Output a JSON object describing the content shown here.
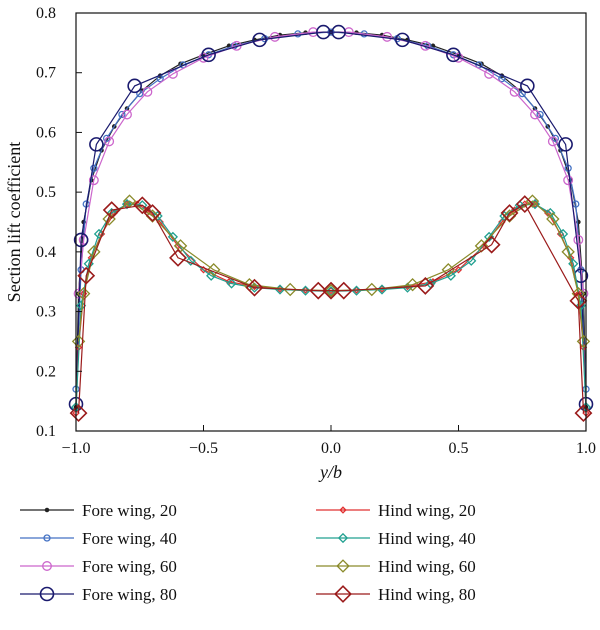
{
  "chart_data": {
    "type": "line",
    "title": "",
    "xlabel": "y/b",
    "ylabel": "Section lift coefficient",
    "xlim": [
      -1.0,
      1.0
    ],
    "ylim": [
      0.1,
      0.8
    ],
    "xticks": [
      "−1.0",
      "−0.5",
      "0.0",
      "0.5",
      "1.0"
    ],
    "xtick_values": [
      -1.0,
      -0.5,
      0.0,
      0.5,
      1.0
    ],
    "yticks": [
      "0.1",
      "0.2",
      "0.3",
      "0.4",
      "0.5",
      "0.6",
      "0.7",
      "0.8"
    ],
    "ytick_values": [
      0.1,
      0.2,
      0.3,
      0.4,
      0.5,
      0.6,
      0.7,
      0.8
    ],
    "grid": false,
    "legend_position": "bottom",
    "series": [
      {
        "name": "Fore wing, 20",
        "color": "#222222",
        "marker": "dot",
        "x": [
          -1.0,
          -0.99,
          -0.97,
          -0.94,
          -0.9,
          -0.85,
          -0.8,
          -0.74,
          -0.67,
          -0.59,
          -0.5,
          -0.4,
          -0.3,
          -0.2,
          -0.1,
          0.0,
          0.1,
          0.2,
          0.3,
          0.4,
          0.5,
          0.59,
          0.67,
          0.74,
          0.8,
          0.85,
          0.9,
          0.94,
          0.97,
          0.99,
          1.0
        ],
        "y": [
          0.14,
          0.33,
          0.45,
          0.52,
          0.57,
          0.61,
          0.64,
          0.67,
          0.695,
          0.715,
          0.73,
          0.745,
          0.755,
          0.763,
          0.767,
          0.768,
          0.767,
          0.763,
          0.755,
          0.745,
          0.73,
          0.715,
          0.695,
          0.67,
          0.64,
          0.61,
          0.57,
          0.52,
          0.45,
          0.33,
          0.14
        ]
      },
      {
        "name": "Fore wing, 40",
        "color": "#4472c4",
        "marker": "circle-small",
        "x": [
          -1.0,
          -0.98,
          -0.96,
          -0.93,
          -0.88,
          -0.82,
          -0.75,
          -0.67,
          -0.58,
          -0.48,
          -0.38,
          -0.26,
          -0.13,
          0.0,
          0.13,
          0.26,
          0.38,
          0.48,
          0.58,
          0.67,
          0.75,
          0.82,
          0.88,
          0.93,
          0.96,
          0.98,
          1.0
        ],
        "y": [
          0.17,
          0.37,
          0.48,
          0.54,
          0.59,
          0.63,
          0.665,
          0.69,
          0.713,
          0.73,
          0.745,
          0.757,
          0.765,
          0.768,
          0.765,
          0.757,
          0.745,
          0.73,
          0.713,
          0.69,
          0.665,
          0.63,
          0.59,
          0.54,
          0.48,
          0.37,
          0.17
        ]
      },
      {
        "name": "Fore wing, 60",
        "color": "#cc66cc",
        "marker": "circle-medium",
        "x": [
          -0.99,
          -0.97,
          -0.93,
          -0.87,
          -0.8,
          -0.72,
          -0.62,
          -0.5,
          -0.37,
          -0.22,
          -0.07,
          0.07,
          0.22,
          0.37,
          0.5,
          0.62,
          0.72,
          0.8,
          0.87,
          0.93,
          0.97,
          0.99
        ],
        "y": [
          0.33,
          0.42,
          0.52,
          0.585,
          0.63,
          0.668,
          0.698,
          0.725,
          0.745,
          0.76,
          0.768,
          0.768,
          0.76,
          0.745,
          0.725,
          0.698,
          0.668,
          0.63,
          0.585,
          0.52,
          0.42,
          0.33
        ]
      },
      {
        "name": "Fore wing, 80",
        "color": "#1a1a6e",
        "marker": "circle-large",
        "x": [
          -1.0,
          -0.98,
          -0.92,
          -0.77,
          -0.48,
          -0.28,
          -0.03,
          0.03,
          0.28,
          0.48,
          0.77,
          0.92,
          0.98,
          1.0
        ],
        "y": [
          0.145,
          0.42,
          0.58,
          0.678,
          0.73,
          0.755,
          0.768,
          0.768,
          0.755,
          0.73,
          0.678,
          0.58,
          0.36,
          0.145
        ]
      },
      {
        "name": "Hind wing, 20",
        "color": "#e03030",
        "marker": "diamond-small",
        "x": [
          -1.0,
          -0.99,
          -0.97,
          -0.94,
          -0.9,
          -0.85,
          -0.8,
          -0.76,
          -0.72,
          -0.67,
          -0.6,
          -0.5,
          -0.4,
          -0.3,
          -0.2,
          -0.1,
          0.0,
          0.1,
          0.2,
          0.3,
          0.4,
          0.5,
          0.6,
          0.67,
          0.72,
          0.76,
          0.8,
          0.85,
          0.9,
          0.94,
          0.97,
          0.99,
          1.0
        ],
        "y": [
          0.13,
          0.24,
          0.33,
          0.39,
          0.43,
          0.465,
          0.48,
          0.48,
          0.47,
          0.45,
          0.41,
          0.37,
          0.35,
          0.342,
          0.338,
          0.336,
          0.335,
          0.336,
          0.338,
          0.342,
          0.35,
          0.37,
          0.41,
          0.45,
          0.47,
          0.48,
          0.48,
          0.465,
          0.43,
          0.39,
          0.33,
          0.24,
          0.13
        ]
      },
      {
        "name": "Hind wing, 40",
        "color": "#20a090",
        "marker": "diamond-medium",
        "x": [
          -1.0,
          -0.98,
          -0.95,
          -0.91,
          -0.86,
          -0.8,
          -0.74,
          -0.68,
          -0.62,
          -0.55,
          -0.47,
          -0.39,
          -0.3,
          -0.2,
          -0.1,
          0.0,
          0.1,
          0.2,
          0.3,
          0.39,
          0.47,
          0.55,
          0.62,
          0.68,
          0.74,
          0.8,
          0.86,
          0.91,
          0.95,
          0.98,
          1.0
        ],
        "y": [
          0.14,
          0.31,
          0.38,
          0.43,
          0.465,
          0.48,
          0.478,
          0.46,
          0.425,
          0.385,
          0.36,
          0.347,
          0.34,
          0.337,
          0.335,
          0.334,
          0.335,
          0.337,
          0.34,
          0.347,
          0.36,
          0.385,
          0.425,
          0.46,
          0.478,
          0.48,
          0.465,
          0.43,
          0.38,
          0.31,
          0.14
        ]
      },
      {
        "name": "Hind wing, 60",
        "color": "#8a8a2a",
        "marker": "diamond-large",
        "x": [
          -0.99,
          -0.97,
          -0.93,
          -0.87,
          -0.79,
          -0.7,
          -0.59,
          -0.46,
          -0.32,
          -0.16,
          0.0,
          0.16,
          0.32,
          0.46,
          0.59,
          0.7,
          0.79,
          0.87,
          0.93,
          0.97,
          0.99
        ],
        "y": [
          0.25,
          0.33,
          0.4,
          0.455,
          0.485,
          0.46,
          0.41,
          0.37,
          0.345,
          0.337,
          0.335,
          0.337,
          0.345,
          0.37,
          0.41,
          0.46,
          0.485,
          0.455,
          0.4,
          0.33,
          0.25
        ]
      },
      {
        "name": "Hind wing, 80",
        "color": "#9b1b1b",
        "marker": "diamond-xlarge",
        "x": [
          -0.99,
          -0.96,
          -0.86,
          -0.74,
          -0.7,
          -0.6,
          -0.3,
          -0.05,
          0.0,
          0.05,
          0.37,
          0.63,
          0.7,
          0.76,
          0.97,
          0.99
        ],
        "y": [
          0.13,
          0.36,
          0.47,
          0.478,
          0.465,
          0.39,
          0.34,
          0.335,
          0.335,
          0.335,
          0.343,
          0.412,
          0.465,
          0.48,
          0.318,
          0.13
        ]
      }
    ]
  }
}
